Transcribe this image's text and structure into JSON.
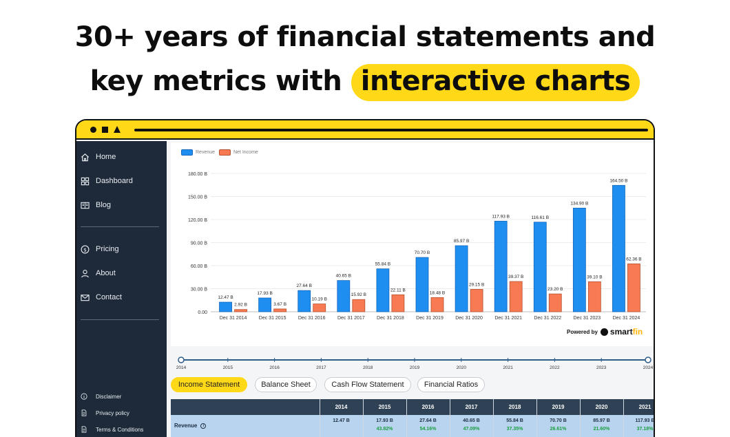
{
  "headline": {
    "line1": "30+ years of financial statements and",
    "line2_prefix": "key metrics with ",
    "line2_highlight": "interactive charts"
  },
  "colors": {
    "accent_yellow": "#ffd817",
    "sidebar_bg": "#1e2a39",
    "revenue_blue": "#1f8ef1",
    "net_income_orange": "#f77a52",
    "table_header": "#2f4255",
    "table_row": "#b8d4ee",
    "growth_green": "#1a9e3f"
  },
  "sidebar": {
    "items": [
      {
        "label": "Home",
        "icon": "home-icon"
      },
      {
        "label": "Dashboard",
        "icon": "grid-icon"
      },
      {
        "label": "Blog",
        "icon": "book-icon"
      },
      {
        "label": "Pricing",
        "icon": "dollar-icon"
      },
      {
        "label": "About",
        "icon": "user-icon"
      },
      {
        "label": "Contact",
        "icon": "mail-icon"
      }
    ],
    "footer": [
      {
        "label": "Disclaimer",
        "icon": "info-icon"
      },
      {
        "label": "Privacy policy",
        "icon": "document-icon"
      },
      {
        "label": "Terms & Conditions",
        "icon": "document-icon"
      }
    ]
  },
  "chart_data": {
    "type": "bar",
    "categories": [
      "Dec 31 2014",
      "Dec 31 2015",
      "Dec 31 2016",
      "Dec 31 2017",
      "Dec 31 2018",
      "Dec 31 2019",
      "Dec 31 2020",
      "Dec 31 2021",
      "Dec 31 2022",
      "Dec 31 2023",
      "Dec 31 2024"
    ],
    "series": [
      {
        "name": "Revenue",
        "values": [
          12.47,
          17.93,
          27.64,
          40.65,
          55.84,
          70.7,
          85.97,
          117.93,
          116.61,
          134.9,
          164.5
        ],
        "labels": [
          "12.47 B",
          "17.93 B",
          "27.64 B",
          "40.65 B",
          "55.84 B",
          "70.70 B",
          "85.97 B",
          "117.93 B",
          "116.61 B",
          "134.90 B",
          "164.50 B"
        ]
      },
      {
        "name": "Net Income",
        "values": [
          2.92,
          3.67,
          10.19,
          15.92,
          22.11,
          18.48,
          29.15,
          39.37,
          23.2,
          39.1,
          62.36
        ],
        "labels": [
          "2.92 B",
          "3.67 B",
          "10.19 B",
          "15.92 B",
          "22.11 B",
          "18.48 B",
          "29.15 B",
          "39.37 B",
          "23.20 B",
          "39.10 B",
          "62.36 B"
        ]
      }
    ],
    "yticks": [
      "0.00",
      "30.00 B",
      "60.00 B",
      "90.00 B",
      "120.00 B",
      "150.00 B",
      "180.00 B"
    ],
    "ylim": [
      0,
      180
    ],
    "grid": true,
    "legend": "top-left"
  },
  "powered": {
    "prefix": "Powered by",
    "brand_smart": "smart",
    "brand_fin": "fin"
  },
  "timeline": {
    "years": [
      "2014",
      "2015",
      "2016",
      "2017",
      "2018",
      "2019",
      "2020",
      "2021",
      "2022",
      "2023",
      "2024"
    ]
  },
  "tabs": [
    "Income Statement",
    "Balance Sheet",
    "Cash Flow Statement",
    "Financial Ratios"
  ],
  "table": {
    "years": [
      "2014",
      "2015",
      "2016",
      "2017",
      "2018",
      "2019",
      "2020",
      "2021"
    ],
    "row_label": "Revenue",
    "values": [
      "12.47 B",
      "17.93 B",
      "27.64 B",
      "40.65 B",
      "55.84 B",
      "70.70 B",
      "85.97 B",
      "117.93 B"
    ],
    "growth": [
      "",
      "43.82%",
      "54.16%",
      "47.09%",
      "37.35%",
      "26.61%",
      "21.60%",
      "37.18%"
    ]
  }
}
